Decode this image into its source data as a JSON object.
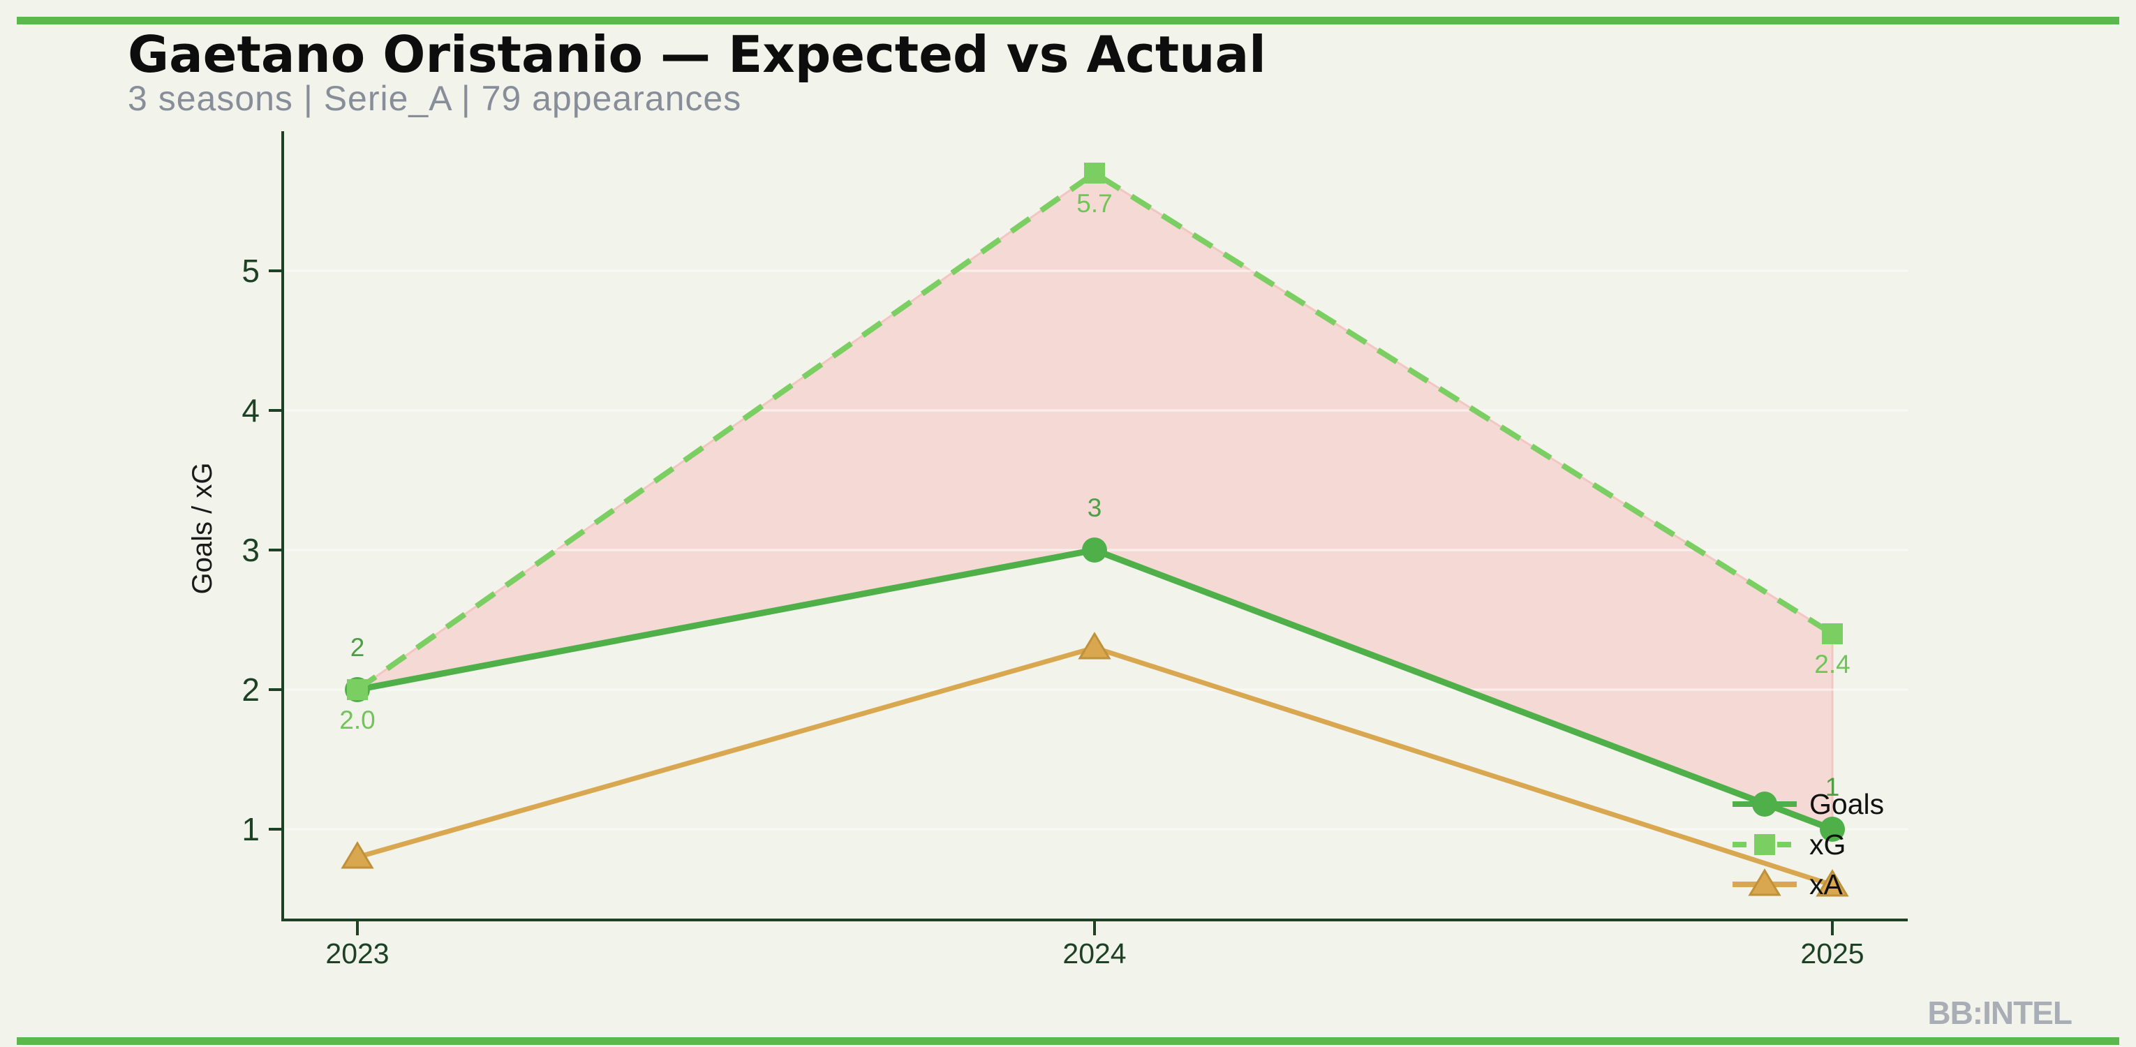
{
  "page": {
    "background_color": "#f2f3eb",
    "accent_bar_color": "#5bb84d"
  },
  "header": {
    "title": "Gaetano Oristanio — Expected vs Actual",
    "subtitle": "3 seasons | Serie_A | 79 appearances"
  },
  "watermark": "BB:INTEL",
  "axis": {
    "color": "#1d4125",
    "tick_label_color": "#1d4125",
    "ylabel_color": "#1a1a1a"
  },
  "chart_data": {
    "type": "line",
    "title": "Gaetano Oristanio — Expected vs Actual",
    "subtitle": "3 seasons | Serie_A | 79 appearances",
    "xlabel": "",
    "ylabel": "Goals / xG",
    "categories": [
      2023,
      2024,
      2025
    ],
    "x_tick_labels": [
      "2023",
      "2024",
      "2025"
    ],
    "y_ticks": [
      1,
      2,
      3,
      4,
      5
    ],
    "ylim": [
      0.35,
      6.0
    ],
    "grid": "faint horizontal gridlines at integer values",
    "legend_position": "lower right, no frame",
    "series": [
      {
        "name": "Goals",
        "values": [
          2,
          3,
          1
        ],
        "color": "#4fb04a",
        "marker": "circle",
        "line_style": "solid",
        "labels": [
          "2",
          "3",
          "1"
        ],
        "label_color": "#4c9f44"
      },
      {
        "name": "xG",
        "values": [
          2.0,
          5.7,
          2.4
        ],
        "color": "#7bce62",
        "marker": "square",
        "line_style": "dashed",
        "labels": [
          "2.0",
          "5.7",
          "2.4"
        ],
        "label_color": "#6fc558"
      },
      {
        "name": "xA",
        "values": [
          0.8,
          2.3,
          0.6
        ],
        "color": "#d8a750",
        "marker": "triangle",
        "line_style": "solid",
        "labels": null,
        "marker_edge_color": "#bf9138"
      }
    ],
    "fill_between": {
      "upper": "xG",
      "lower": "Goals",
      "color": "#f5d9d4",
      "edge_color": "#f2c6c1",
      "meaning": "gap between expected goals (xG) and actual goals"
    }
  }
}
